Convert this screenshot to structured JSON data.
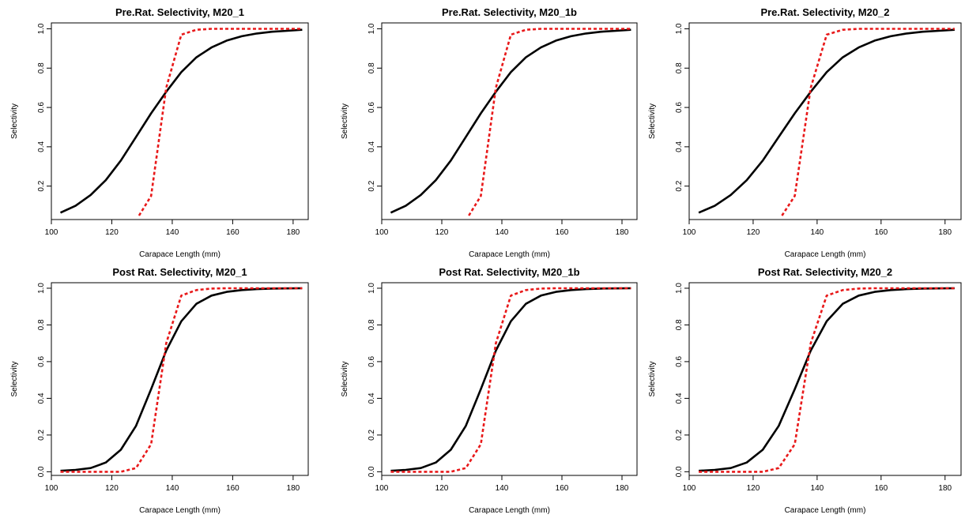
{
  "chart_data": [
    {
      "type": "line",
      "title": "Pre.Rat. Selectivity, M20_1",
      "xlabel": "Carapace Length (mm)",
      "ylabel": "Selectivity",
      "xlim": [
        100,
        185
      ],
      "ylim": [
        0.03,
        1.03
      ],
      "xticks": [
        "100",
        "120",
        "140",
        "160",
        "180"
      ],
      "yticks": [
        "0.2",
        "0.4",
        "0.6",
        "0.8",
        "1.0"
      ],
      "colors": {
        "black": "#000000",
        "red": "#e8191a"
      },
      "series": [
        {
          "color": "#000000",
          "style": "solid",
          "x": [
            103,
            108,
            113,
            118,
            123,
            128,
            133,
            138,
            143,
            148,
            153,
            158,
            163,
            168,
            173,
            178,
            183
          ],
          "y": [
            0.065,
            0.1,
            0.155,
            0.23,
            0.33,
            0.45,
            0.57,
            0.68,
            0.78,
            0.855,
            0.905,
            0.94,
            0.962,
            0.976,
            0.985,
            0.99,
            0.995
          ]
        },
        {
          "color": "#e8191a",
          "style": "dashed",
          "x": [
            129,
            133,
            138,
            143,
            148,
            153,
            158,
            163,
            168,
            173,
            178,
            183
          ],
          "y": [
            0.05,
            0.15,
            0.7,
            0.97,
            0.995,
            1.0,
            1.0,
            1.0,
            1.0,
            1.0,
            1.0,
            1.0
          ]
        }
      ]
    },
    {
      "type": "line",
      "title": "Pre.Rat. Selectivity, M20_1b",
      "xlabel": "Carapace Length (mm)",
      "ylabel": "Selectivity",
      "xlim": [
        100,
        185
      ],
      "ylim": [
        0.03,
        1.03
      ],
      "xticks": [
        "100",
        "120",
        "140",
        "160",
        "180"
      ],
      "yticks": [
        "0.2",
        "0.4",
        "0.6",
        "0.8",
        "1.0"
      ],
      "colors": {
        "black": "#000000",
        "red": "#e8191a"
      },
      "series": [
        {
          "color": "#000000",
          "style": "solid",
          "x": [
            103,
            108,
            113,
            118,
            123,
            128,
            133,
            138,
            143,
            148,
            153,
            158,
            163,
            168,
            173,
            178,
            183
          ],
          "y": [
            0.065,
            0.1,
            0.155,
            0.23,
            0.33,
            0.45,
            0.57,
            0.68,
            0.78,
            0.855,
            0.905,
            0.94,
            0.962,
            0.976,
            0.985,
            0.99,
            0.995
          ]
        },
        {
          "color": "#e8191a",
          "style": "dashed",
          "x": [
            129,
            133,
            138,
            143,
            148,
            153,
            158,
            163,
            168,
            173,
            178,
            183
          ],
          "y": [
            0.05,
            0.15,
            0.7,
            0.97,
            0.995,
            1.0,
            1.0,
            1.0,
            1.0,
            1.0,
            1.0,
            1.0
          ]
        }
      ]
    },
    {
      "type": "line",
      "title": "Pre.Rat. Selectivity, M20_2",
      "xlabel": "Carapace Length (mm)",
      "ylabel": "Selectivity",
      "xlim": [
        100,
        185
      ],
      "ylim": [
        0.03,
        1.03
      ],
      "xticks": [
        "100",
        "120",
        "140",
        "160",
        "180"
      ],
      "yticks": [
        "0.2",
        "0.4",
        "0.6",
        "0.8",
        "1.0"
      ],
      "colors": {
        "black": "#000000",
        "red": "#e8191a"
      },
      "series": [
        {
          "color": "#000000",
          "style": "solid",
          "x": [
            103,
            108,
            113,
            118,
            123,
            128,
            133,
            138,
            143,
            148,
            153,
            158,
            163,
            168,
            173,
            178,
            183
          ],
          "y": [
            0.065,
            0.1,
            0.155,
            0.23,
            0.33,
            0.45,
            0.57,
            0.68,
            0.78,
            0.855,
            0.905,
            0.94,
            0.962,
            0.976,
            0.985,
            0.99,
            0.995
          ]
        },
        {
          "color": "#e8191a",
          "style": "dashed",
          "x": [
            129,
            133,
            138,
            143,
            148,
            153,
            158,
            163,
            168,
            173,
            178,
            183
          ],
          "y": [
            0.05,
            0.15,
            0.7,
            0.97,
            0.995,
            1.0,
            1.0,
            1.0,
            1.0,
            1.0,
            1.0,
            1.0
          ]
        }
      ]
    },
    {
      "type": "line",
      "title": "Post Rat. Selectivity, M20_1",
      "xlabel": "Carapace Length (mm)",
      "ylabel": "Selectivity",
      "xlim": [
        100,
        185
      ],
      "ylim": [
        -0.02,
        1.03
      ],
      "xticks": [
        "100",
        "120",
        "140",
        "160",
        "180"
      ],
      "yticks": [
        "0.0",
        "0.2",
        "0.4",
        "0.6",
        "0.8",
        "1.0"
      ],
      "colors": {
        "black": "#000000",
        "red": "#e8191a"
      },
      "series": [
        {
          "color": "#000000",
          "style": "solid",
          "x": [
            103,
            108,
            113,
            118,
            123,
            128,
            133,
            138,
            143,
            148,
            153,
            158,
            163,
            168,
            173,
            178,
            183
          ],
          "y": [
            0.005,
            0.01,
            0.02,
            0.05,
            0.12,
            0.25,
            0.45,
            0.66,
            0.82,
            0.915,
            0.96,
            0.98,
            0.99,
            0.995,
            0.998,
            0.999,
            1.0
          ]
        },
        {
          "color": "#e8191a",
          "style": "dashed",
          "x": [
            103,
            108,
            113,
            118,
            123,
            128,
            133,
            138,
            143,
            148,
            153,
            158,
            163,
            168,
            173,
            178,
            183
          ],
          "y": [
            0.0,
            0.0,
            0.0,
            0.0,
            0.0,
            0.02,
            0.15,
            0.7,
            0.96,
            0.99,
            0.998,
            1.0,
            1.0,
            1.0,
            1.0,
            1.0,
            1.0
          ]
        }
      ]
    },
    {
      "type": "line",
      "title": "Post Rat. Selectivity, M20_1b",
      "xlabel": "Carapace Length (mm)",
      "ylabel": "Selectivity",
      "xlim": [
        100,
        185
      ],
      "ylim": [
        -0.02,
        1.03
      ],
      "xticks": [
        "100",
        "120",
        "140",
        "160",
        "180"
      ],
      "yticks": [
        "0.0",
        "0.2",
        "0.4",
        "0.6",
        "0.8",
        "1.0"
      ],
      "colors": {
        "black": "#000000",
        "red": "#e8191a"
      },
      "series": [
        {
          "color": "#000000",
          "style": "solid",
          "x": [
            103,
            108,
            113,
            118,
            123,
            128,
            133,
            138,
            143,
            148,
            153,
            158,
            163,
            168,
            173,
            178,
            183
          ],
          "y": [
            0.005,
            0.01,
            0.02,
            0.05,
            0.12,
            0.25,
            0.45,
            0.66,
            0.82,
            0.915,
            0.96,
            0.98,
            0.99,
            0.995,
            0.998,
            0.999,
            1.0
          ]
        },
        {
          "color": "#e8191a",
          "style": "dashed",
          "x": [
            103,
            108,
            113,
            118,
            123,
            128,
            133,
            138,
            143,
            148,
            153,
            158,
            163,
            168,
            173,
            178,
            183
          ],
          "y": [
            0.0,
            0.0,
            0.0,
            0.0,
            0.0,
            0.02,
            0.15,
            0.7,
            0.96,
            0.99,
            0.998,
            1.0,
            1.0,
            1.0,
            1.0,
            1.0,
            1.0
          ]
        }
      ]
    },
    {
      "type": "line",
      "title": "Post Rat. Selectivity, M20_2",
      "xlabel": "Carapace Length (mm)",
      "ylabel": "Selectivity",
      "xlim": [
        100,
        185
      ],
      "ylim": [
        -0.02,
        1.03
      ],
      "xticks": [
        "100",
        "120",
        "140",
        "160",
        "180"
      ],
      "yticks": [
        "0.0",
        "0.2",
        "0.4",
        "0.6",
        "0.8",
        "1.0"
      ],
      "colors": {
        "black": "#000000",
        "red": "#e8191a"
      },
      "series": [
        {
          "color": "#000000",
          "style": "solid",
          "x": [
            103,
            108,
            113,
            118,
            123,
            128,
            133,
            138,
            143,
            148,
            153,
            158,
            163,
            168,
            173,
            178,
            183
          ],
          "y": [
            0.005,
            0.01,
            0.02,
            0.05,
            0.12,
            0.25,
            0.45,
            0.66,
            0.82,
            0.915,
            0.96,
            0.98,
            0.99,
            0.995,
            0.998,
            0.999,
            1.0
          ]
        },
        {
          "color": "#e8191a",
          "style": "dashed",
          "x": [
            103,
            108,
            113,
            118,
            123,
            128,
            133,
            138,
            143,
            148,
            153,
            158,
            163,
            168,
            173,
            178,
            183
          ],
          "y": [
            0.0,
            0.0,
            0.0,
            0.0,
            0.0,
            0.02,
            0.15,
            0.7,
            0.96,
            0.99,
            0.998,
            1.0,
            1.0,
            1.0,
            1.0,
            1.0,
            1.0
          ]
        }
      ]
    }
  ]
}
